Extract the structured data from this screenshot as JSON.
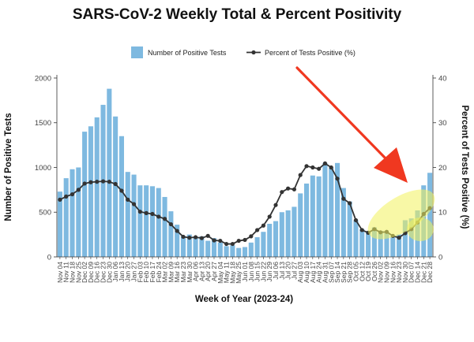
{
  "chart_data": {
    "type": "bar",
    "title": "SARS-CoV-2 Weekly Total & Percent Positivity",
    "xlabel": "Week of Year (2023-24)",
    "ylabel": "Number of Positive Tests",
    "y2label": "Percent of Tests Positive (%)",
    "ylim": [
      0,
      2000
    ],
    "y2lim": [
      0,
      40
    ],
    "yticks": [
      "0",
      "500",
      "1000",
      "1500",
      "2000"
    ],
    "y2ticks": [
      "0",
      "10",
      "20",
      "30",
      "40"
    ],
    "legend_position": "top",
    "grid": false,
    "categories": [
      "Nov 04",
      "Nov 11",
      "Nov 18",
      "Nov 25",
      "Dec 02",
      "Dec 09",
      "Dec 16",
      "Dec 23",
      "Dec 30",
      "Jan 06",
      "Jan 13",
      "Jan 20",
      "Jan 27",
      "Feb 03",
      "Feb 10",
      "Feb 17",
      "Feb 24",
      "Mar 02",
      "Mar 09",
      "Mar 16",
      "Mar 23",
      "Mar 30",
      "Apr 06",
      "Apr 13",
      "Apr 20",
      "Apr 27",
      "May 04",
      "May 11",
      "May 18",
      "May 25",
      "Jun 01",
      "Jun 08",
      "Jun 15",
      "Jun 22",
      "Jun 29",
      "Jul 06",
      "Jul 13",
      "Jul 20",
      "Jul 27",
      "Aug 03",
      "Aug 10",
      "Aug 17",
      "Aug 24",
      "Aug 31",
      "Sep 07",
      "Sep 14",
      "Sep 21",
      "Sep 28",
      "Oct 05",
      "Oct 12",
      "Oct 19",
      "Oct 26",
      "Nov 02",
      "Nov 09",
      "Nov 16",
      "Nov 23",
      "Nov 30",
      "Dec 07",
      "Dec 14",
      "Dec 21",
      "Dec 28"
    ],
    "x_tick_labels": [
      "Nov 04",
      "Nov 11",
      "Nov 18",
      "Nov 25",
      "Dec 02",
      "Dec 09",
      "Dec 16",
      "Dec 23",
      "Dec 30",
      "Jan 06",
      "Jan 13",
      "Jan 20",
      "Jan 27",
      "Feb 03",
      "Feb 10",
      "Feb 17",
      "Feb 24",
      "Mar 02",
      "Mar 09",
      "Mar 16",
      "Mar 23",
      "Mar 30",
      "Apr 06",
      "Apr 13",
      "Apr 20",
      "Apr 27",
      "May 04",
      "May 11",
      "May 18",
      "May 25",
      "Jun 01",
      "Jun 08",
      "Jun 15",
      "Jun 22",
      "Jun 29",
      "Jul 06",
      "Jul 13",
      "Jul 20",
      "Jul 27",
      "Aug 03",
      "Aug 10",
      "Aug 17",
      "Aug 24",
      "Aug 31",
      "Sep 07",
      "Sep 14",
      "Sep 21",
      "Sep 28",
      "Oct 05",
      "Oct 12",
      "Oct 19",
      "Oct 26",
      "Nov 02",
      "Nov 09",
      "Nov 16",
      "Nov 23",
      "Nov 30",
      "Dec 07",
      "Dec 14",
      "Dec 21",
      "Dec 28"
    ],
    "series": [
      {
        "name": "Number of Positive Tests",
        "type": "bar",
        "axis": "left",
        "color": "#7eb9e0",
        "values": [
          730,
          880,
          980,
          1000,
          1400,
          1460,
          1560,
          1700,
          1880,
          1570,
          1350,
          950,
          920,
          800,
          800,
          790,
          770,
          670,
          510,
          360,
          230,
          250,
          220,
          230,
          180,
          210,
          160,
          120,
          130,
          100,
          110,
          160,
          220,
          280,
          370,
          400,
          500,
          520,
          560,
          710,
          820,
          910,
          900,
          1050,
          1000,
          1050,
          770,
          620,
          410,
          310,
          290,
          330,
          290,
          270,
          230,
          250,
          410,
          430,
          520,
          800,
          940
        ]
      },
      {
        "name": "Percent of Tests Positive (%)",
        "type": "line",
        "axis": "right",
        "color": "#333333",
        "values": [
          12.8,
          13.5,
          14.0,
          15.0,
          16.4,
          16.7,
          16.8,
          16.9,
          16.8,
          16.3,
          14.8,
          12.8,
          11.8,
          10.1,
          9.8,
          9.6,
          9.0,
          8.5,
          7.3,
          5.8,
          4.5,
          4.3,
          4.4,
          4.2,
          4.7,
          3.7,
          3.6,
          2.9,
          2.9,
          3.6,
          3.8,
          4.6,
          6.0,
          7.0,
          9.0,
          11.6,
          14.5,
          15.3,
          15.1,
          18.3,
          20.3,
          20.0,
          19.7,
          20.9,
          20.0,
          17.5,
          13.0,
          12.0,
          8.2,
          6.0,
          5.4,
          6.2,
          5.5,
          5.6,
          4.7,
          4.3,
          5.3,
          6.2,
          7.7,
          9.6,
          10.9
        ]
      }
    ],
    "annotations": [
      {
        "type": "arrow",
        "color": "#f03820",
        "description": "red arrow pointing to the latest bars"
      },
      {
        "type": "highlight",
        "color": "#f2f05a",
        "description": "yellow highlight over recent weeks"
      }
    ]
  },
  "legend": {
    "bar_label": "Number of Positive Tests",
    "line_label": "Percent of Tests Positive (%)"
  }
}
